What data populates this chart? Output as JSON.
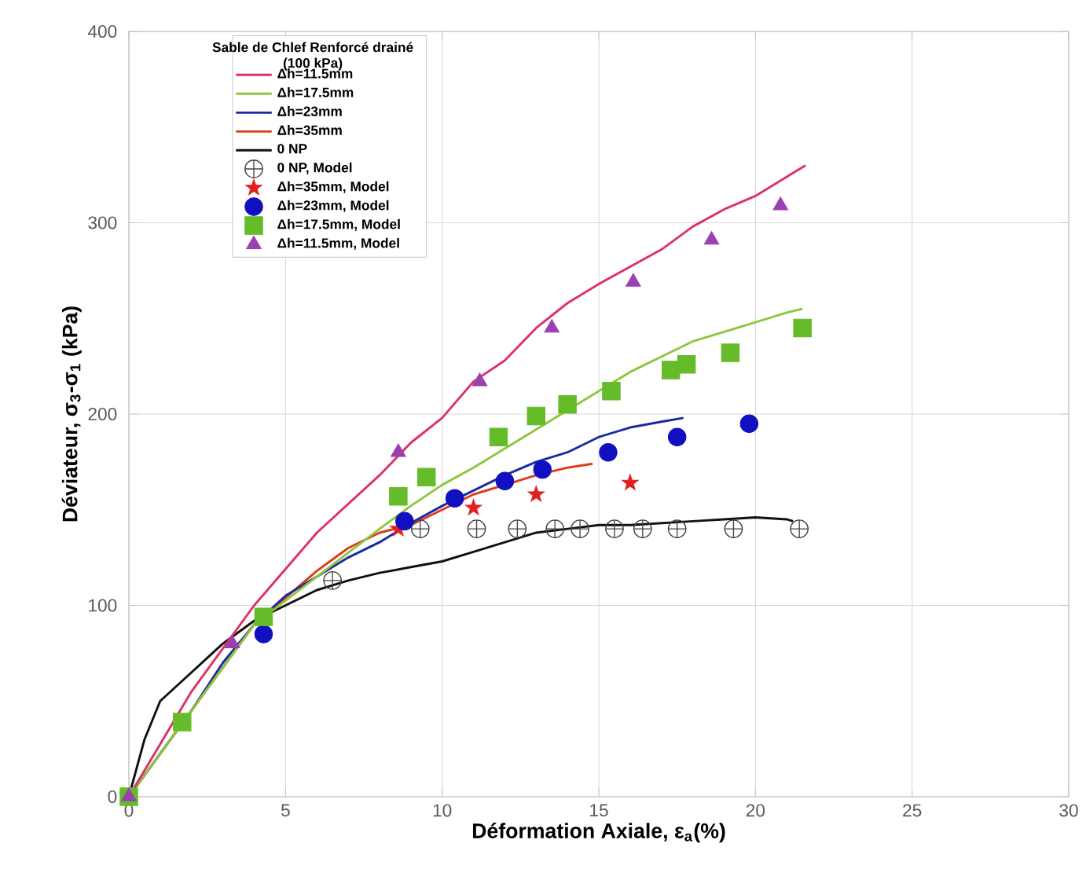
{
  "chart_data": {
    "type": "line",
    "xlabel": "Déformation Axiale, ε$_{a}$(%)",
    "ylabel": "Déviateur, σ$_{3}$-σ$_{1}$ (kPa)",
    "legend_title": "Sable de Chlef Renforcé drainé (100 kPa)",
    "xlim": [
      0,
      30
    ],
    "xticks": [
      0,
      5,
      10,
      15,
      20,
      25,
      30
    ],
    "ylim": [
      0,
      400
    ],
    "yticks": [
      0,
      100,
      200,
      300,
      400
    ],
    "grid": true,
    "legend": "top left",
    "series": [
      {
        "name": "Δh=11.5mm",
        "marker": "none",
        "color": "#e0306a",
        "x": [
          0,
          2,
          4,
          6,
          8,
          9,
          10,
          11,
          12,
          13,
          14,
          15,
          16,
          17,
          18,
          19,
          20,
          21,
          21.6
        ],
        "values": [
          0,
          55,
          100,
          138,
          168,
          185,
          198,
          217,
          228,
          245,
          258,
          268,
          277,
          286,
          298,
          307,
          314,
          324,
          330
        ]
      },
      {
        "name": "Δh=17.5mm",
        "marker": "none",
        "color": "#8cc83c",
        "x": [
          0,
          2,
          4,
          6,
          8,
          9,
          10,
          11,
          12,
          13,
          14,
          15,
          16,
          17,
          18,
          19,
          20,
          21,
          21.5
        ],
        "values": [
          0,
          45,
          90,
          115,
          140,
          152,
          163,
          172,
          182,
          192,
          202,
          212,
          222,
          230,
          238,
          243,
          248,
          253,
          255
        ]
      },
      {
        "name": "Δh=23mm",
        "marker": "none",
        "color": "#1a2aa0",
        "x": [
          0,
          2,
          3,
          4,
          5,
          6,
          7,
          8,
          9,
          10,
          11,
          12,
          13,
          14,
          15,
          16,
          17,
          17.7
        ],
        "values": [
          0,
          45,
          70,
          90,
          105,
          115,
          125,
          133,
          143,
          152,
          160,
          168,
          175,
          180,
          188,
          193,
          196,
          198
        ]
      },
      {
        "name": "Δh=35mm",
        "marker": "none",
        "color": "#e03a1a",
        "x": [
          0,
          2,
          4,
          6,
          7,
          8,
          9,
          10,
          11,
          12,
          13,
          14,
          14.8
        ],
        "values": [
          0,
          45,
          90,
          118,
          130,
          138,
          142,
          150,
          158,
          163,
          168,
          172,
          174
        ]
      },
      {
        "name": "0 NP",
        "marker": "none",
        "color": "#111111",
        "x": [
          0,
          0.5,
          1,
          2,
          3,
          4,
          5,
          6,
          7,
          8,
          9,
          10,
          11,
          12,
          13,
          14,
          15,
          16,
          17,
          18,
          19,
          20,
          21,
          21.2
        ],
        "values": [
          0,
          30,
          50,
          65,
          80,
          92,
          100,
          108,
          113,
          117,
          120,
          123,
          128,
          133,
          138,
          140,
          142,
          142,
          143,
          144,
          145,
          146,
          145,
          144
        ]
      },
      {
        "name": "0 NP, Model",
        "type": "scatter",
        "marker": "cross",
        "color": "#444444",
        "x": [
          6.5,
          9.3,
          11.1,
          12.4,
          13.6,
          14.4,
          15.5,
          16.4,
          17.5,
          19.3,
          21.4
        ],
        "values": [
          113,
          140,
          140,
          140,
          140,
          140,
          140,
          140,
          140,
          140,
          140
        ]
      },
      {
        "name": "Δh=35mm, Model",
        "type": "scatter",
        "marker": "star",
        "color": "#e02020",
        "x": [
          8.6,
          11.0,
          13.0,
          16.0
        ],
        "values": [
          140,
          151,
          158,
          164
        ]
      },
      {
        "name": "Δh=23mm, Model",
        "type": "scatter",
        "marker": "circle",
        "color": "#1010c0",
        "x": [
          4.3,
          8.8,
          10.4,
          12.0,
          13.2,
          15.3,
          17.5,
          19.8
        ],
        "values": [
          85,
          144,
          156,
          165,
          171,
          180,
          188,
          195
        ]
      },
      {
        "name": "Δh=17.5mm, Model",
        "type": "scatter",
        "marker": "square",
        "color": "#66bb2a",
        "x": [
          0,
          1.7,
          4.3,
          8.6,
          9.5,
          11.8,
          13.0,
          14.0,
          15.4,
          17.3,
          17.8,
          19.2,
          21.5
        ],
        "values": [
          0,
          39,
          94,
          157,
          167,
          188,
          199,
          205,
          212,
          223,
          226,
          232,
          245
        ]
      },
      {
        "name": "Δh=11.5mm, Model",
        "type": "scatter",
        "marker": "triangle",
        "color": "#9a40b0",
        "x": [
          0,
          3.3,
          8.6,
          11.2,
          13.5,
          16.1,
          18.6,
          20.8
        ],
        "values": [
          0,
          80,
          180,
          217,
          245,
          269,
          291,
          309
        ]
      }
    ]
  }
}
